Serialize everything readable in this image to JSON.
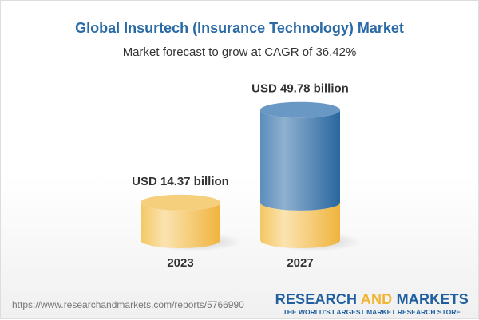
{
  "title": "Global Insurtech (Insurance Technology) Market",
  "subtitle": "Market forecast to grow at CAGR of 36.42%",
  "chart_data": {
    "type": "bar",
    "style": "3d-cylinder",
    "categories": [
      "2023",
      "2027"
    ],
    "values": [
      14.37,
      49.78
    ],
    "data_labels": [
      "USD 14.37 billion",
      "USD 49.78 billion"
    ],
    "unit": "USD billion",
    "colors": {
      "base": "#f2c15a",
      "growth": "#4a7fb0"
    },
    "grid": false
  },
  "footer": {
    "url": "https://www.researchandmarkets.com/reports/5766990",
    "logo_part1": "RESEARCH ",
    "logo_part2": "AND",
    "logo_part3": " MARKETS",
    "tagline": "THE WORLD'S LARGEST MARKET RESEARCH STORE"
  }
}
